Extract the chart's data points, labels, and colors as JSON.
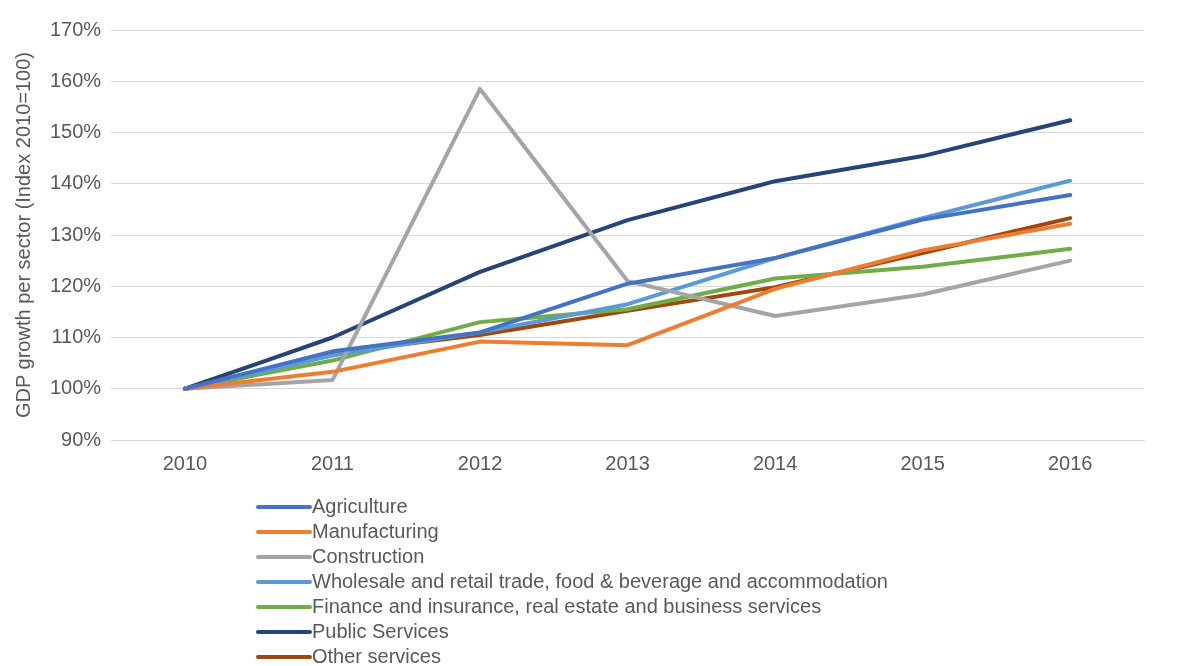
{
  "chart_data": {
    "type": "line",
    "ylabel": "GDP growth per sector (Index 2010=100)",
    "categories": [
      "2010",
      "2011",
      "2012",
      "2013",
      "2014",
      "2015",
      "2016"
    ],
    "ylim": [
      90,
      170
    ],
    "yticks": [
      {
        "value": 90,
        "label": "90%"
      },
      {
        "value": 100,
        "label": "100%"
      },
      {
        "value": 110,
        "label": "110%"
      },
      {
        "value": 120,
        "label": "120%"
      },
      {
        "value": 130,
        "label": "130%"
      },
      {
        "value": 140,
        "label": "140%"
      },
      {
        "value": 150,
        "label": "150%"
      },
      {
        "value": 160,
        "label": "160%"
      },
      {
        "value": 170,
        "label": "170%"
      }
    ],
    "grid": "y",
    "legend": "bottom",
    "marker": "none",
    "line_style": "solid",
    "series": [
      {
        "name": "Agriculture",
        "color": "#4472c4",
        "values": [
          100,
          107.3,
          111,
          120.5,
          125.5,
          133,
          137.8
        ]
      },
      {
        "name": "Manufacturing",
        "color": "#ed7d31",
        "values": [
          100,
          103.3,
          109.2,
          108.5,
          119.5,
          127,
          132.2
        ]
      },
      {
        "name": "Construction",
        "color": "#a5a5a5",
        "values": [
          100,
          101.7,
          158.5,
          121,
          114.2,
          118.4,
          125
        ]
      },
      {
        "name": "Wholesale and retail trade, food & beverage and accommodation",
        "color": "#5b9bd5",
        "values": [
          100,
          106.5,
          111,
          116.5,
          125.5,
          133.3,
          140.6
        ]
      },
      {
        "name": "Finance and insurance, real estate and business services",
        "color": "#70ad47",
        "values": [
          100,
          105.5,
          113,
          115.5,
          121.5,
          123.8,
          127.3
        ]
      },
      {
        "name": "Public Services",
        "color": "#264478",
        "values": [
          100,
          110,
          122.8,
          132.9,
          140.5,
          145.4,
          152.4
        ]
      },
      {
        "name": "Other services",
        "color": "#9e480e",
        "values": [
          100,
          107,
          110.5,
          115.2,
          119.8,
          126.5,
          133.3
        ]
      }
    ]
  }
}
